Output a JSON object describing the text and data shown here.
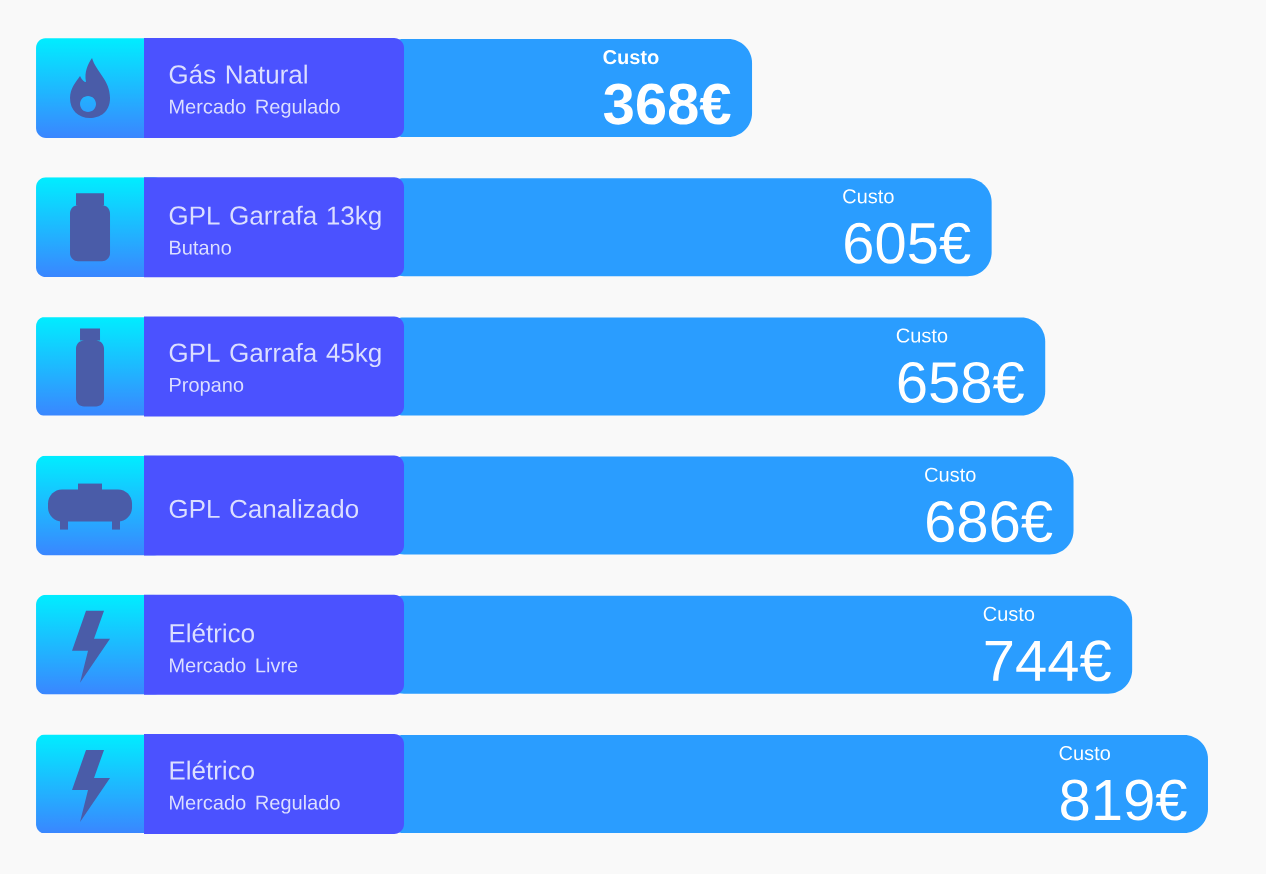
{
  "chart_data": {
    "type": "bar",
    "orientation": "horizontal",
    "categories": [
      "Gás Natural\nMercado Regulado",
      "GPL Garrafa 13kg\nButano",
      "GPL Garrafa 45kg\nPropano",
      "GPL Canalizado",
      "Elétrico\nMercado Livre",
      "Elétrico\nMercado Regulado"
    ],
    "values": [
      368,
      605,
      658,
      686,
      744,
      819
    ],
    "color": "#2a9dff",
    "value_labels": [
      "368€",
      "605€",
      "658€",
      "686€",
      "744€",
      "819€"
    ],
    "annotations": [
      "Custo",
      "Custo",
      "Custo",
      "Custo",
      "Custo",
      "Custo"
    ]
  }
}
